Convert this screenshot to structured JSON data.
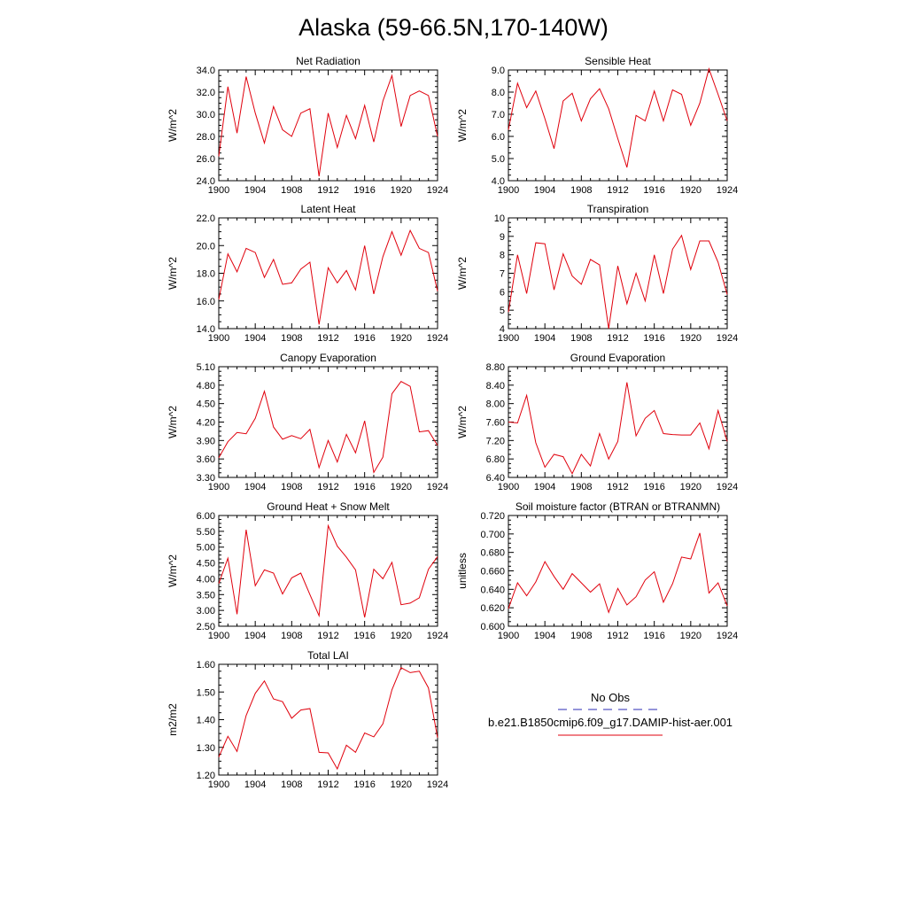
{
  "title": "Alaska (59-66.5N,170-140W)",
  "series_color": "#e0000c",
  "obs_color": "#2b2bb5",
  "legend": {
    "obs_label": "No Obs",
    "model_label": "b.e21.B1850cmip6.f09_g17.DAMIP-hist-aer.001"
  },
  "chart_data": [
    {
      "type": "line",
      "title": "Net Radiation",
      "ylabel": "W/m^2",
      "xlim": [
        1900,
        1924
      ],
      "xticks": [
        "1900",
        "1904",
        "1908",
        "1912",
        "1916",
        "1920",
        "1924"
      ],
      "ylim": [
        24.0,
        34.0
      ],
      "yticks": [
        "24.0",
        "26.0",
        "28.0",
        "30.0",
        "32.0",
        "34.0"
      ],
      "x": [
        1900,
        1901,
        1902,
        1903,
        1904,
        1905,
        1906,
        1907,
        1908,
        1909,
        1910,
        1911,
        1912,
        1913,
        1914,
        1915,
        1916,
        1917,
        1918,
        1919,
        1920,
        1921,
        1922,
        1923,
        1924
      ],
      "values": [
        26.2,
        32.5,
        28.3,
        33.4,
        30.1,
        27.4,
        30.7,
        28.6,
        28.0,
        30.1,
        30.5,
        24.4,
        30.1,
        27.0,
        29.9,
        27.8,
        30.8,
        27.5,
        31.2,
        33.5,
        28.9,
        31.7,
        32.1,
        31.7,
        28.0
      ]
    },
    {
      "type": "line",
      "title": "Sensible Heat",
      "ylabel": "W/m^2",
      "xlim": [
        1900,
        1924
      ],
      "xticks": [
        "1900",
        "1904",
        "1908",
        "1912",
        "1916",
        "1920",
        "1924"
      ],
      "ylim": [
        4.0,
        9.0
      ],
      "yticks": [
        "4.0",
        "5.0",
        "6.0",
        "7.0",
        "8.0",
        "9.0"
      ],
      "x": [
        1900,
        1901,
        1902,
        1903,
        1904,
        1905,
        1906,
        1907,
        1908,
        1909,
        1910,
        1911,
        1912,
        1913,
        1914,
        1915,
        1916,
        1917,
        1918,
        1919,
        1920,
        1921,
        1922,
        1923,
        1924
      ],
      "values": [
        6.3,
        8.4,
        7.3,
        8.05,
        6.8,
        5.45,
        7.6,
        7.95,
        6.7,
        7.7,
        8.15,
        7.25,
        5.9,
        4.6,
        6.95,
        6.7,
        8.05,
        6.7,
        8.1,
        7.9,
        6.5,
        7.5,
        9.05,
        7.9,
        6.7
      ]
    },
    {
      "type": "line",
      "title": "Latent Heat",
      "ylabel": "W/m^2",
      "xlim": [
        1900,
        1924
      ],
      "xticks": [
        "1900",
        "1904",
        "1908",
        "1912",
        "1916",
        "1920",
        "1924"
      ],
      "ylim": [
        14.0,
        22.0
      ],
      "yticks": [
        "14.0",
        "16.0",
        "18.0",
        "20.0",
        "22.0"
      ],
      "x": [
        1900,
        1901,
        1902,
        1903,
        1904,
        1905,
        1906,
        1907,
        1908,
        1909,
        1910,
        1911,
        1912,
        1913,
        1914,
        1915,
        1916,
        1917,
        1918,
        1919,
        1920,
        1921,
        1922,
        1923,
        1924
      ],
      "values": [
        16.1,
        19.4,
        18.1,
        19.8,
        19.5,
        17.7,
        19.0,
        17.2,
        17.3,
        18.3,
        18.8,
        14.3,
        18.4,
        17.3,
        18.2,
        16.8,
        20.0,
        16.5,
        19.2,
        21.0,
        19.3,
        21.1,
        19.8,
        19.5,
        16.7
      ]
    },
    {
      "type": "line",
      "title": "Transpiration",
      "ylabel": "W/m^2",
      "xlim": [
        1900,
        1924
      ],
      "xticks": [
        "1900",
        "1904",
        "1908",
        "1912",
        "1916",
        "1920",
        "1924"
      ],
      "ylim": [
        4,
        10
      ],
      "yticks": [
        "4",
        "5",
        "6",
        "7",
        "8",
        "9",
        "10"
      ],
      "x": [
        1900,
        1901,
        1902,
        1903,
        1904,
        1905,
        1906,
        1907,
        1908,
        1909,
        1910,
        1911,
        1912,
        1913,
        1914,
        1915,
        1916,
        1917,
        1918,
        1919,
        1920,
        1921,
        1922,
        1923,
        1924
      ],
      "values": [
        4.9,
        8.0,
        5.9,
        8.65,
        8.6,
        6.1,
        8.05,
        6.85,
        6.4,
        7.75,
        7.45,
        4.0,
        7.4,
        5.35,
        7.0,
        5.5,
        8.0,
        5.9,
        8.3,
        9.05,
        7.2,
        8.75,
        8.75,
        7.6,
        5.85
      ]
    },
    {
      "type": "line",
      "title": "Canopy Evaporation",
      "ylabel": "W/m^2",
      "xlim": [
        1900,
        1924
      ],
      "xticks": [
        "1900",
        "1904",
        "1908",
        "1912",
        "1916",
        "1920",
        "1924"
      ],
      "ylim": [
        3.3,
        5.1
      ],
      "yticks": [
        "3.30",
        "3.60",
        "3.90",
        "4.20",
        "4.50",
        "4.80",
        "5.10"
      ],
      "x": [
        1900,
        1901,
        1902,
        1903,
        1904,
        1905,
        1906,
        1907,
        1908,
        1909,
        1910,
        1911,
        1912,
        1913,
        1914,
        1915,
        1916,
        1917,
        1918,
        1919,
        1920,
        1921,
        1922,
        1923,
        1924
      ],
      "values": [
        3.62,
        3.88,
        4.03,
        4.01,
        4.26,
        4.7,
        4.12,
        3.92,
        3.98,
        3.93,
        4.08,
        3.46,
        3.9,
        3.55,
        4.0,
        3.7,
        4.22,
        3.38,
        3.63,
        4.66,
        4.86,
        4.78,
        4.04,
        4.06,
        3.82
      ]
    },
    {
      "type": "line",
      "title": "Ground Evaporation",
      "ylabel": "W/m^2",
      "xlim": [
        1900,
        1924
      ],
      "xticks": [
        "1900",
        "1904",
        "1908",
        "1912",
        "1916",
        "1920",
        "1924"
      ],
      "ylim": [
        6.4,
        8.8
      ],
      "yticks": [
        "6.40",
        "6.80",
        "7.20",
        "7.60",
        "8.00",
        "8.40",
        "8.80"
      ],
      "x": [
        1900,
        1901,
        1902,
        1903,
        1904,
        1905,
        1906,
        1907,
        1908,
        1909,
        1910,
        1911,
        1912,
        1913,
        1914,
        1915,
        1916,
        1917,
        1918,
        1919,
        1920,
        1921,
        1922,
        1923,
        1924
      ],
      "values": [
        7.6,
        7.58,
        8.18,
        7.15,
        6.62,
        6.9,
        6.85,
        6.48,
        6.9,
        6.65,
        7.35,
        6.8,
        7.18,
        8.46,
        7.3,
        7.68,
        7.85,
        7.35,
        7.33,
        7.32,
        7.32,
        7.58,
        7.02,
        7.85,
        7.18
      ]
    },
    {
      "type": "line",
      "title": "Ground Heat + Snow Melt",
      "ylabel": "W/m^2",
      "xlim": [
        1900,
        1924
      ],
      "xticks": [
        "1900",
        "1904",
        "1908",
        "1912",
        "1916",
        "1920",
        "1924"
      ],
      "ylim": [
        2.5,
        6.0
      ],
      "yticks": [
        "2.50",
        "3.00",
        "3.50",
        "4.00",
        "4.50",
        "5.00",
        "5.50",
        "6.00"
      ],
      "x": [
        1900,
        1901,
        1902,
        1903,
        1904,
        1905,
        1906,
        1907,
        1908,
        1909,
        1910,
        1911,
        1912,
        1913,
        1914,
        1915,
        1916,
        1917,
        1918,
        1919,
        1920,
        1921,
        1922,
        1923,
        1924
      ],
      "values": [
        3.85,
        4.65,
        2.88,
        5.55,
        3.78,
        4.28,
        4.18,
        3.52,
        4.03,
        4.18,
        3.5,
        2.83,
        5.68,
        5.03,
        4.68,
        4.28,
        2.78,
        4.3,
        4.0,
        4.52,
        3.18,
        3.23,
        3.4,
        4.3,
        4.7
      ]
    },
    {
      "type": "line",
      "title": "Soil moisture factor (BTRAN or BTRANMN)",
      "ylabel": "unitless",
      "xlim": [
        1900,
        1924
      ],
      "xticks": [
        "1900",
        "1904",
        "1908",
        "1912",
        "1916",
        "1920",
        "1924"
      ],
      "ylim": [
        0.6,
        0.72
      ],
      "yticks": [
        "0.600",
        "0.620",
        "0.640",
        "0.660",
        "0.680",
        "0.700",
        "0.720"
      ],
      "x": [
        1900,
        1901,
        1902,
        1903,
        1904,
        1905,
        1906,
        1907,
        1908,
        1909,
        1910,
        1911,
        1912,
        1913,
        1914,
        1915,
        1916,
        1917,
        1918,
        1919,
        1920,
        1921,
        1922,
        1923,
        1924
      ],
      "values": [
        0.619,
        0.647,
        0.633,
        0.648,
        0.67,
        0.654,
        0.64,
        0.657,
        0.647,
        0.637,
        0.646,
        0.615,
        0.641,
        0.623,
        0.632,
        0.65,
        0.659,
        0.626,
        0.646,
        0.675,
        0.673,
        0.701,
        0.636,
        0.647,
        0.622
      ]
    },
    {
      "type": "line",
      "title": "Total LAI",
      "ylabel": "m2/m2",
      "xlim": [
        1900,
        1924
      ],
      "xticks": [
        "1900",
        "1904",
        "1908",
        "1912",
        "1916",
        "1920",
        "1924"
      ],
      "ylim": [
        1.2,
        1.6
      ],
      "yticks": [
        "1.20",
        "1.30",
        "1.40",
        "1.50",
        "1.60"
      ],
      "x": [
        1900,
        1901,
        1902,
        1903,
        1904,
        1905,
        1906,
        1907,
        1908,
        1909,
        1910,
        1911,
        1912,
        1913,
        1914,
        1915,
        1916,
        1917,
        1918,
        1919,
        1920,
        1921,
        1922,
        1923,
        1924
      ],
      "values": [
        1.265,
        1.34,
        1.285,
        1.415,
        1.495,
        1.54,
        1.475,
        1.465,
        1.405,
        1.435,
        1.44,
        1.282,
        1.28,
        1.222,
        1.308,
        1.282,
        1.352,
        1.338,
        1.385,
        1.508,
        1.588,
        1.57,
        1.575,
        1.515,
        1.335
      ]
    }
  ]
}
